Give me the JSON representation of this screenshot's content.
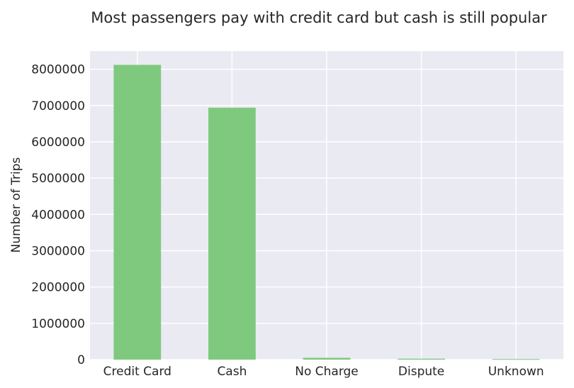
{
  "chart_data": {
    "type": "bar",
    "title": "Most passengers pay with credit card but cash is still popular",
    "xlabel": "",
    "ylabel": "Number of Trips",
    "categories": [
      "Credit Card",
      "Cash",
      "No Charge",
      "Dispute",
      "Unknown"
    ],
    "values": [
      8120000,
      6940000,
      50000,
      25000,
      15000
    ],
    "ylim": [
      0,
      8500000
    ],
    "yticks": [
      0,
      1000000,
      2000000,
      3000000,
      4000000,
      5000000,
      6000000,
      7000000,
      8000000
    ],
    "ytick_labels": [
      "0",
      "1000000",
      "2000000",
      "3000000",
      "4000000",
      "5000000",
      "6000000",
      "7000000",
      "8000000"
    ],
    "grid": true,
    "colors": {
      "bar": "#7fc97f",
      "plot_background": "#eaeaf2",
      "grid": "#ffffff",
      "text": "#262626"
    }
  }
}
